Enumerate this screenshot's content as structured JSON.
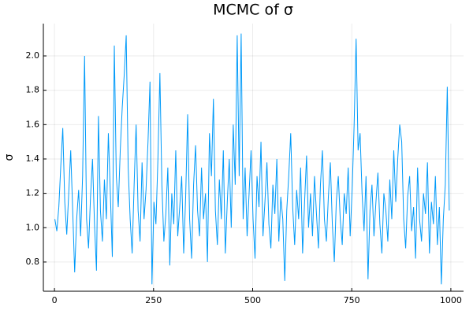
{
  "chart_data": {
    "type": "line",
    "title": "MCMC of σ",
    "ylabel": "σ",
    "x": [
      1,
      6,
      11,
      16,
      21,
      26,
      31,
      36,
      41,
      46,
      51,
      56,
      61,
      66,
      71,
      76,
      81,
      86,
      91,
      96,
      101,
      106,
      111,
      116,
      121,
      126,
      131,
      136,
      141,
      146,
      151,
      156,
      161,
      166,
      171,
      176,
      181,
      186,
      191,
      196,
      201,
      206,
      211,
      216,
      221,
      226,
      231,
      236,
      241,
      246,
      251,
      256,
      261,
      266,
      271,
      276,
      281,
      286,
      291,
      296,
      301,
      306,
      311,
      316,
      321,
      326,
      331,
      336,
      341,
      346,
      351,
      356,
      361,
      366,
      371,
      376,
      381,
      386,
      391,
      396,
      401,
      406,
      411,
      416,
      421,
      426,
      431,
      436,
      441,
      446,
      451,
      456,
      461,
      466,
      471,
      476,
      481,
      486,
      491,
      496,
      501,
      506,
      511,
      516,
      521,
      526,
      531,
      536,
      541,
      546,
      551,
      556,
      561,
      566,
      571,
      576,
      581,
      586,
      591,
      596,
      601,
      606,
      611,
      616,
      621,
      626,
      631,
      636,
      641,
      646,
      651,
      656,
      661,
      666,
      671,
      676,
      681,
      686,
      691,
      696,
      701,
      706,
      711,
      716,
      721,
      726,
      731,
      736,
      741,
      746,
      751,
      756,
      761,
      766,
      771,
      776,
      781,
      786,
      791,
      796,
      801,
      806,
      811,
      816,
      821,
      826,
      831,
      836,
      841,
      846,
      851,
      856,
      861,
      866,
      871,
      876,
      881,
      886,
      891,
      896,
      901,
      906,
      911,
      916,
      921,
      926,
      931,
      936,
      941,
      946,
      951,
      956,
      961,
      966,
      971,
      976,
      981,
      986,
      991,
      996
    ],
    "series": [
      {
        "color": "#009af9",
        "values": [
          1.05,
          0.98,
          1.12,
          1.36,
          1.58,
          1.15,
          0.96,
          1.2,
          1.45,
          1.1,
          0.74,
          1.05,
          1.22,
          0.95,
          1.3,
          2.0,
          1.05,
          0.88,
          1.18,
          1.4,
          1.02,
          0.75,
          1.65,
          1.1,
          0.92,
          1.28,
          1.05,
          1.55,
          1.2,
          0.83,
          2.06,
          1.3,
          1.12,
          1.45,
          1.7,
          1.89,
          2.12,
          1.35,
          1.05,
          0.85,
          1.25,
          1.6,
          1.1,
          0.92,
          1.38,
          1.05,
          1.22,
          1.5,
          1.85,
          0.67,
          1.15,
          1.02,
          1.4,
          1.9,
          1.25,
          0.92,
          1.08,
          1.35,
          0.78,
          1.2,
          1.02,
          1.45,
          0.95,
          1.12,
          1.3,
          0.85,
          1.18,
          1.66,
          1.05,
          0.82,
          1.25,
          1.48,
          1.1,
          0.95,
          1.35,
          1.05,
          1.2,
          0.8,
          1.55,
          1.3,
          1.75,
          1.1,
          0.9,
          1.28,
          1.05,
          1.45,
          0.85,
          1.15,
          1.4,
          1.0,
          1.6,
          1.25,
          2.12,
          1.3,
          2.13,
          1.05,
          1.35,
          0.95,
          1.2,
          1.45,
          1.05,
          0.82,
          1.3,
          1.12,
          1.5,
          0.95,
          1.15,
          1.38,
          1.02,
          0.88,
          1.25,
          1.08,
          1.4,
          0.92,
          1.18,
          1.05,
          0.69,
          1.1,
          1.3,
          1.55,
          1.12,
          0.9,
          1.22,
          1.05,
          1.35,
          0.85,
          1.15,
          1.42,
          1.0,
          1.2,
          0.95,
          1.3,
          1.08,
          0.88,
          1.25,
          1.45,
          1.05,
          0.92,
          1.18,
          1.38,
          1.02,
          0.8,
          1.15,
          1.3,
          1.05,
          0.9,
          1.2,
          1.08,
          1.35,
          0.95,
          1.22,
          1.6,
          2.1,
          1.45,
          1.55,
          1.2,
          0.98,
          1.3,
          0.7,
          1.1,
          1.25,
          0.95,
          1.15,
          1.32,
          1.02,
          0.85,
          1.2,
          1.1,
          0.92,
          1.28,
          1.05,
          1.45,
          1.15,
          1.4,
          1.6,
          1.5,
          1.05,
          0.88,
          1.18,
          1.3,
          0.98,
          1.12,
          0.82,
          1.35,
          1.05,
          0.92,
          1.2,
          1.08,
          1.38,
          0.85,
          1.15,
          1.02,
          1.3,
          0.9,
          1.12,
          0.67,
          1.05,
          1.25,
          1.82,
          1.1
        ]
      }
    ],
    "xlim": [
      -28,
      1032
    ],
    "xticks": [
      0,
      250,
      500,
      750,
      1000
    ],
    "ylim": [
      0.63,
      2.188
    ],
    "yticks": [
      {
        "value": 0.8,
        "label": "0.8"
      },
      {
        "value": 1.0,
        "label": "1.0"
      },
      {
        "value": 1.2,
        "label": "1.2"
      },
      {
        "value": 1.4,
        "label": "1.4"
      },
      {
        "value": 1.6,
        "label": "1.6"
      },
      {
        "value": 1.8,
        "label": "1.8"
      },
      {
        "value": 2.0,
        "label": "2.0"
      }
    ],
    "grid": true
  }
}
